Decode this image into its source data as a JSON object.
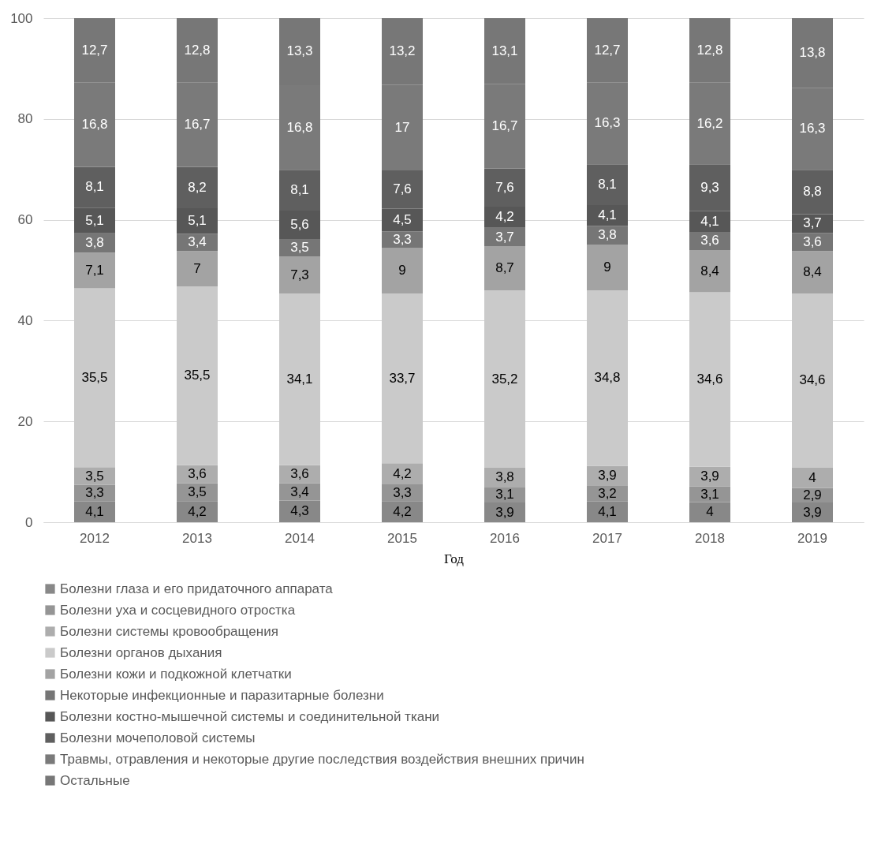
{
  "chart_data": {
    "type": "bar",
    "stacked": true,
    "grid": "y",
    "legend": "bottom",
    "xlabel": "Год",
    "categories": [
      "2012",
      "2013",
      "2014",
      "2015",
      "2016",
      "2017",
      "2018",
      "2019"
    ],
    "ylim": [
      0,
      100
    ],
    "yticks": [
      0,
      20,
      40,
      60,
      80,
      100
    ],
    "series": [
      {
        "name": "Болезни глаза и его придаточного  аппарата",
        "color": "#888888",
        "values": [
          4.1,
          4.2,
          4.3,
          4.2,
          3.9,
          4.1,
          4,
          3.9
        ],
        "value_labels": [
          "4,1",
          "4,2",
          "4,3",
          "4,2",
          "3,9",
          "4,1",
          "4",
          "3,9"
        ]
      },
      {
        "name": "Болезни уха и сосцевидного отростка",
        "color": "#959595",
        "values": [
          3.3,
          3.5,
          3.4,
          3.3,
          3.1,
          3.2,
          3.1,
          2.9
        ],
        "value_labels": [
          "3,3",
          "3,5",
          "3,4",
          "3,3",
          "3,1",
          "3,2",
          "3,1",
          "2,9"
        ]
      },
      {
        "name": "Болезни системы кровообращения",
        "color": "#adadad",
        "values": [
          3.5,
          3.6,
          3.6,
          4.2,
          3.8,
          3.9,
          3.9,
          4
        ],
        "value_labels": [
          "3,5",
          "3,6",
          "3,6",
          "4,2",
          "3,8",
          "3,9",
          "3,9",
          "4"
        ]
      },
      {
        "name": "Болезни органов дыхания",
        "color": "#cacaca",
        "values": [
          35.5,
          35.5,
          34.1,
          33.7,
          35.2,
          34.8,
          34.6,
          34.6
        ],
        "value_labels": [
          "35,5",
          "35,5",
          "34,1",
          "33,7",
          "35,2",
          "34,8",
          "34,6",
          "34,6"
        ]
      },
      {
        "name": "Болезни кожи и подкожной клетчатки",
        "color": "#a3a3a3",
        "values": [
          7.1,
          7,
          7.3,
          9,
          8.7,
          9,
          8.4,
          8.4
        ],
        "value_labels": [
          "7,1",
          "7",
          "7,3",
          "9",
          "8,7",
          "9",
          "8,4",
          "8,4"
        ]
      },
      {
        "name": "Некоторые инфекционные и паразитарные болезни",
        "color": "#767676",
        "values": [
          3.8,
          3.4,
          3.5,
          3.3,
          3.7,
          3.8,
          3.6,
          3.6
        ],
        "value_labels": [
          "3,8",
          "3,4",
          "3,5",
          "3,3",
          "3,7",
          "3,8",
          "3,6",
          "3,6"
        ]
      },
      {
        "name": "Болезни костно-мышечной системы  и соединительной ткани",
        "color": "#575757",
        "values": [
          5.1,
          5.1,
          5.6,
          4.5,
          4.2,
          4.1,
          4.1,
          3.7
        ],
        "value_labels": [
          "5,1",
          "5,1",
          "5,6",
          "4,5",
          "4,2",
          "4,1",
          "4,1",
          "3,7"
        ]
      },
      {
        "name": "Болезни мочеполовой системы",
        "color": "#5f5f5f",
        "values": [
          8.1,
          8.2,
          8.1,
          7.6,
          7.6,
          8.1,
          9.3,
          8.8
        ],
        "value_labels": [
          "8,1",
          "8,2",
          "8,1",
          "7,6",
          "7,6",
          "8,1",
          "9,3",
          "8,8"
        ]
      },
      {
        "name": "Травмы, отравления и некоторые  другие последствия воздействия  внешних причин",
        "color": "#7a7a7a",
        "values": [
          16.8,
          16.7,
          16.8,
          17,
          16.7,
          16.3,
          16.2,
          16.3
        ],
        "value_labels": [
          "16,8",
          "16,7",
          "16,8",
          "17",
          "16,7",
          "16,3",
          "16,2",
          "16,3"
        ]
      },
      {
        "name": "Остальные",
        "color": "#777777",
        "values": [
          12.7,
          12.8,
          13.3,
          13.2,
          13.1,
          12.7,
          12.8,
          13.8
        ],
        "value_labels": [
          "12,7",
          "12,8",
          "13,3",
          "13,2",
          "13,1",
          "12,7",
          "12,8",
          "13,8"
        ]
      }
    ]
  }
}
